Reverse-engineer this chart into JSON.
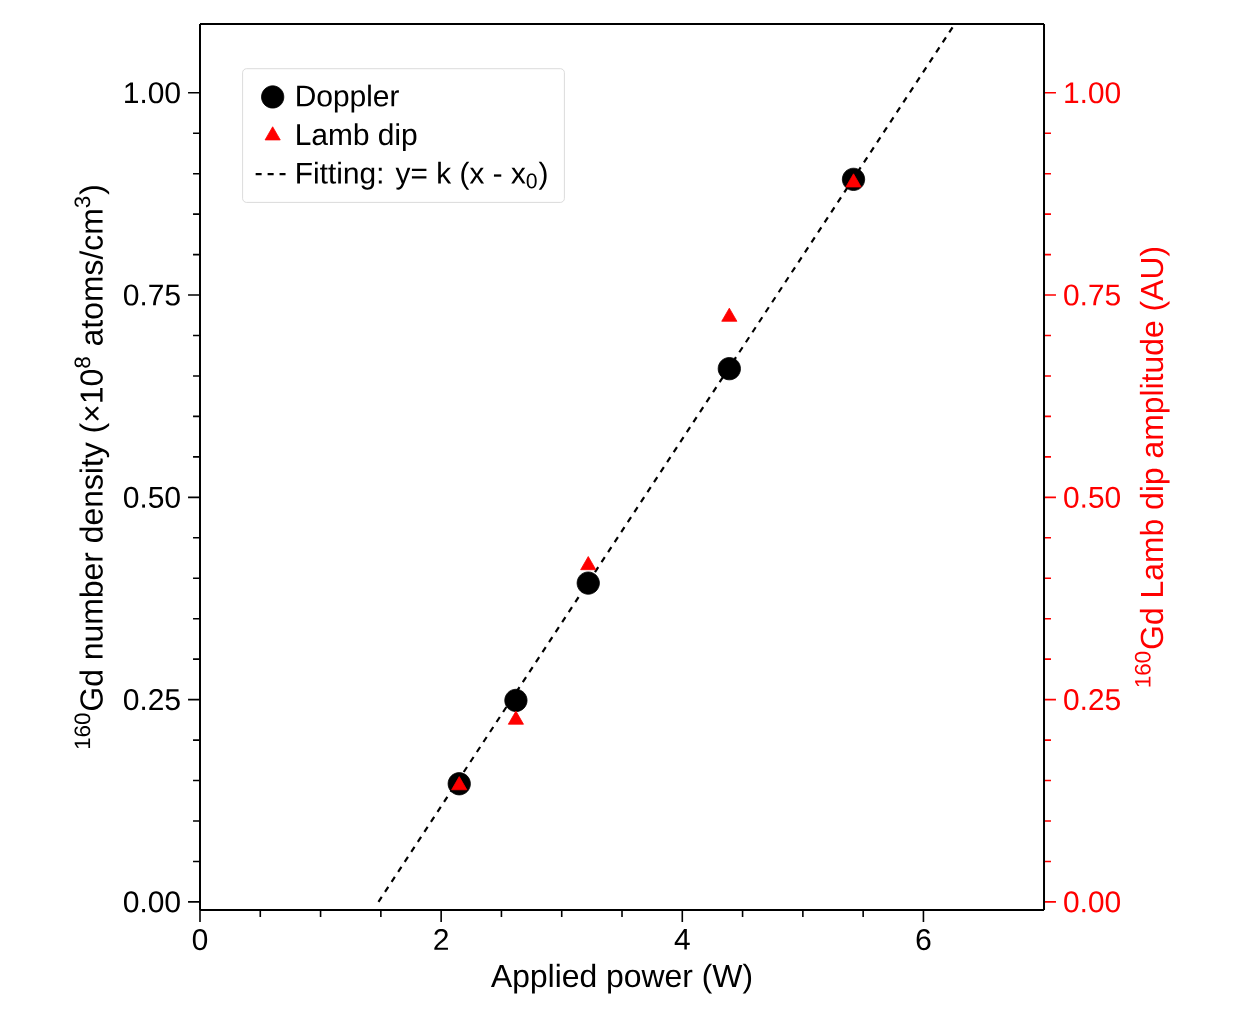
{
  "chart_data": {
    "type": "scatter",
    "xlabel": "Applied power (W)",
    "ylabel": "$^{160}$Gd number density (×10$^{8}$ atoms/cm$^{3}$)",
    "y2label": "$^{160}$Gd Lamb dip amplitude (AU)",
    "xlim": [
      0,
      7
    ],
    "ylim": [
      -0.01,
      1.085
    ],
    "y2lim": [
      -0.01,
      1.085
    ],
    "xticks": [
      0,
      2,
      4,
      6
    ],
    "yticks": [
      {
        "value": 0,
        "label": "0.00"
      },
      0.25,
      {
        "value": 0.5,
        "label": "0.50"
      },
      0.75,
      {
        "value": 1,
        "label": "1.00"
      }
    ],
    "y2ticks": [
      {
        "value": 0,
        "label": "0.00"
      },
      0.25,
      {
        "value": 0.5,
        "label": "0.50"
      },
      0.75,
      {
        "value": 1,
        "label": "1.00"
      }
    ],
    "legend": "top left",
    "grid": false,
    "series": [
      {
        "name": "Doppler",
        "marker": "circle",
        "color": "#000000",
        "x": [
          2.15,
          2.62,
          3.22,
          4.39,
          5.42
        ],
        "values": [
          0.146,
          0.249,
          0.394,
          0.659,
          0.893
        ]
      },
      {
        "name": "Lamb dip",
        "marker": "triangle",
        "color": "#ff0000",
        "axis": "y2",
        "x": [
          2.15,
          2.62,
          3.22,
          4.39,
          5.42
        ],
        "values": [
          0.144,
          0.225,
          0.416,
          0.723,
          0.889
        ]
      },
      {
        "name": "Fitting: y= k (x - x$_{0}$)",
        "type": "line",
        "line_style": "dashed",
        "color": "#000000",
        "x": [
          1.48,
          6.26
        ],
        "values": [
          0,
          1.085
        ]
      }
    ]
  }
}
